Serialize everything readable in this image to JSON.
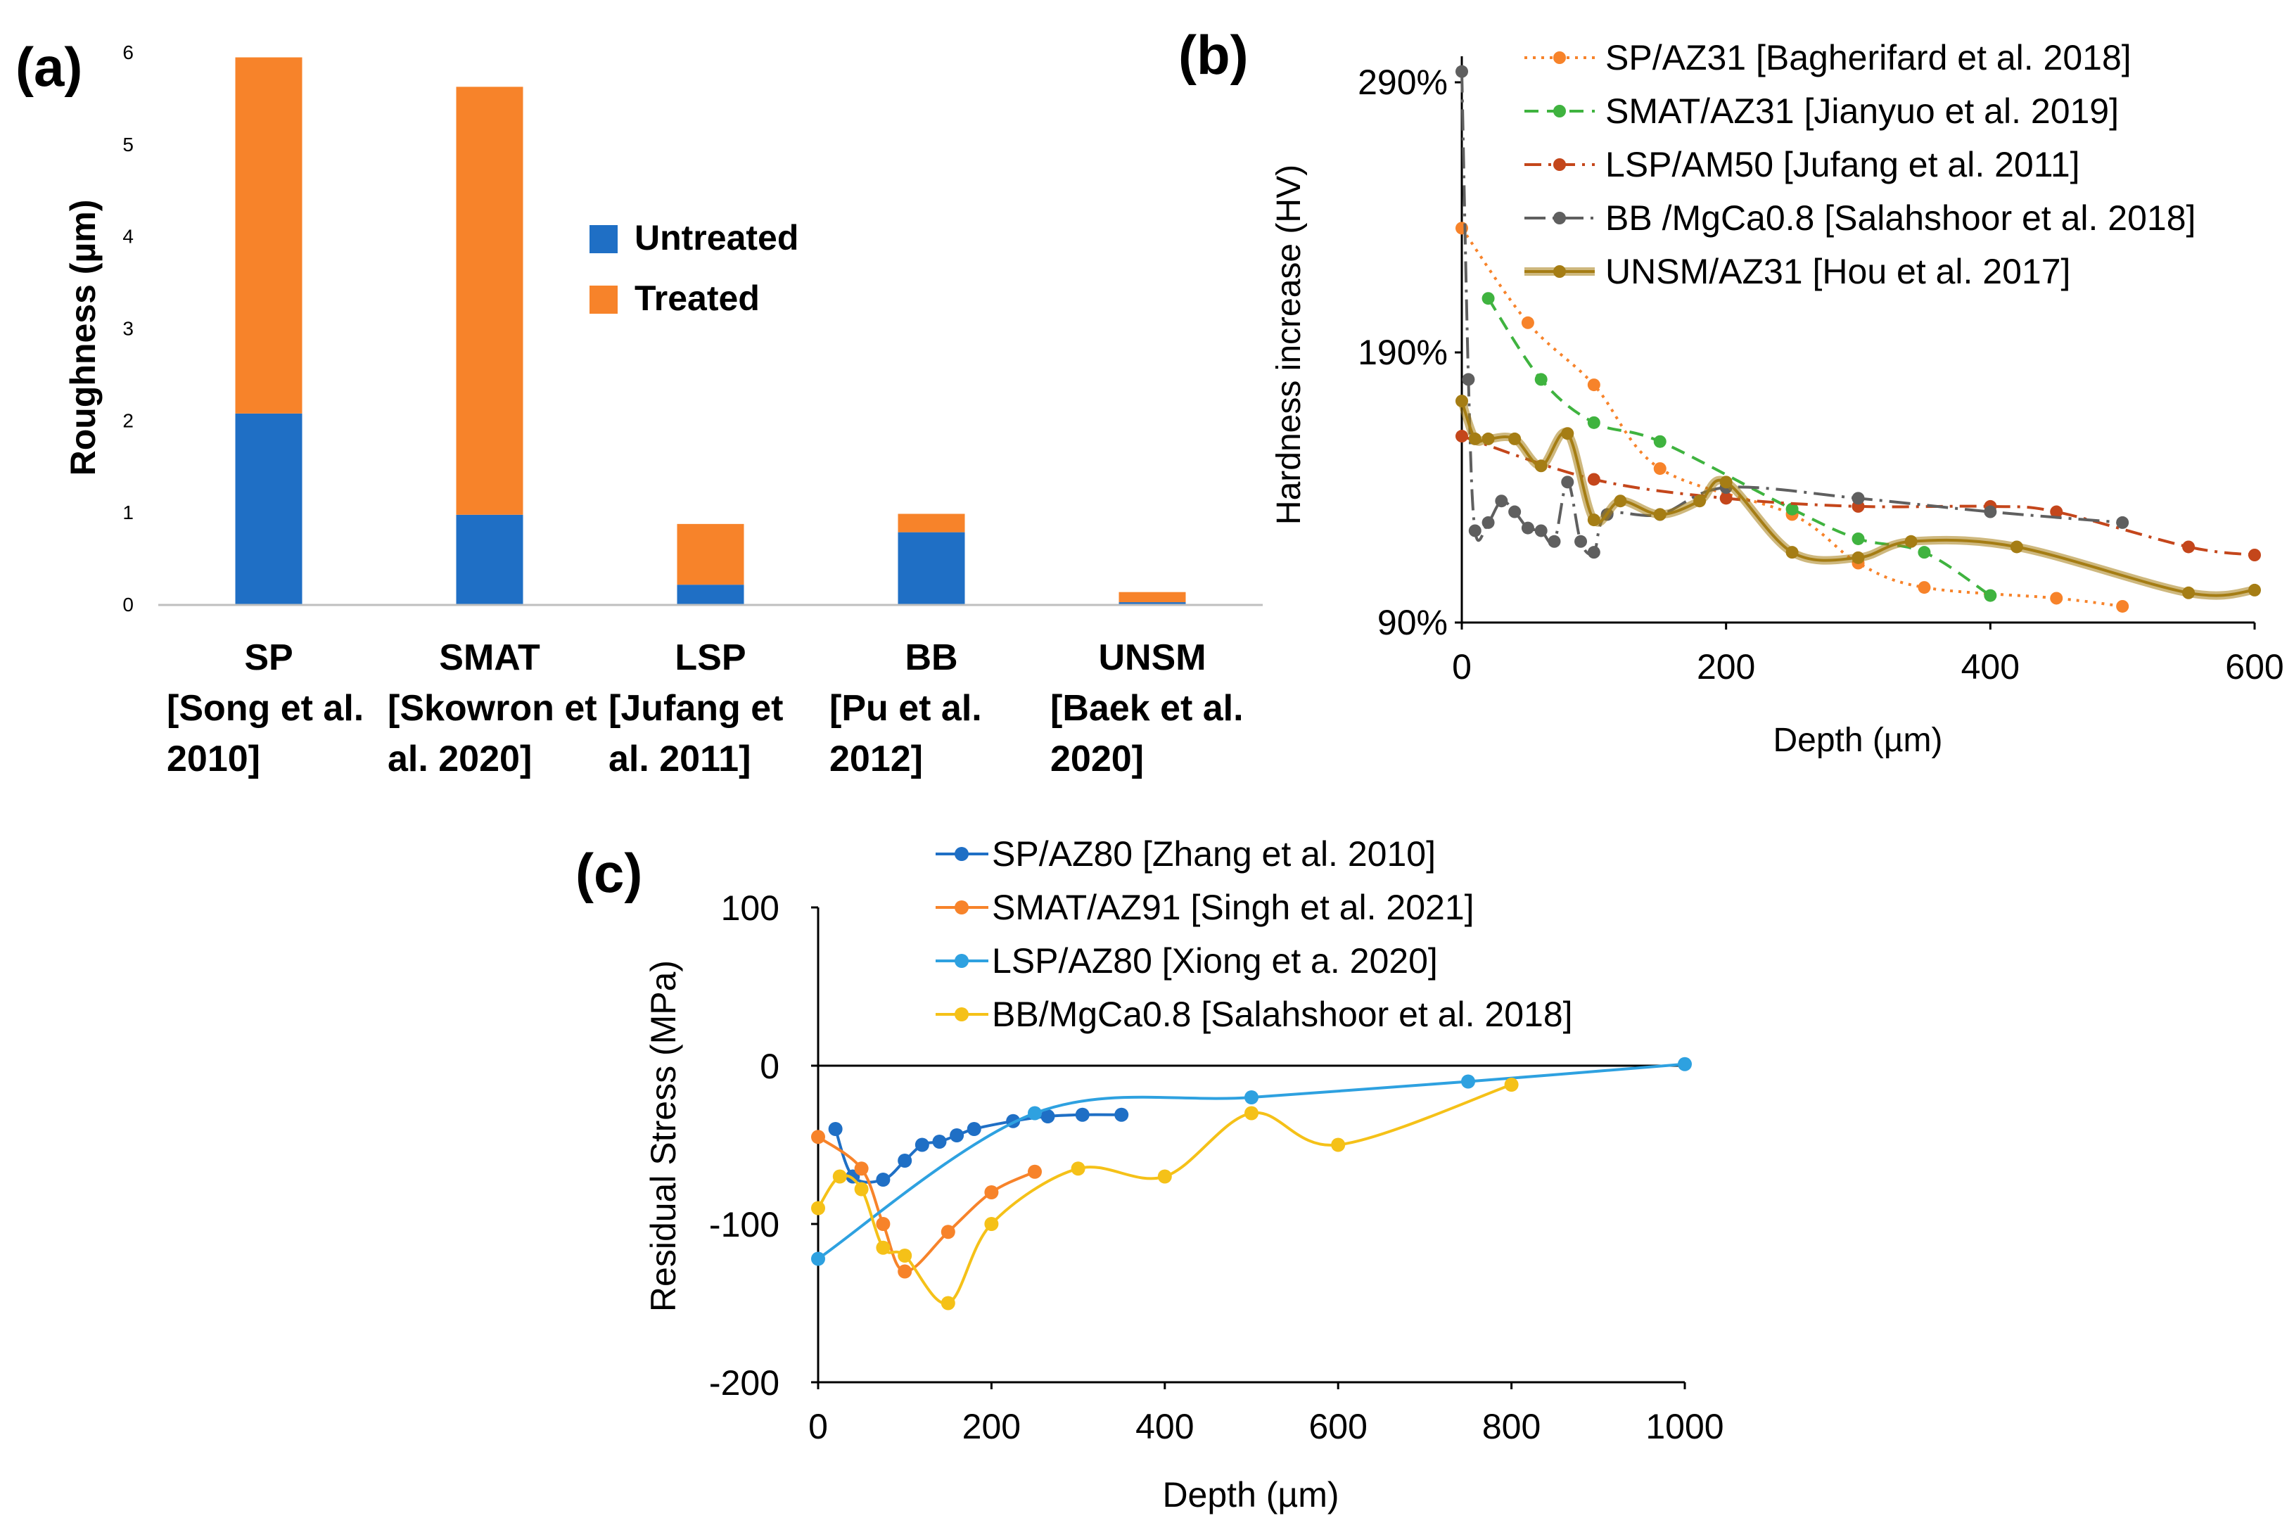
{
  "chart_data": [
    {
      "panel": "(a)",
      "type": "bar",
      "stacked": true,
      "ylabel": "Roughness (µm)",
      "ylim": [
        0,
        6
      ],
      "yticks": [
        0,
        1,
        2,
        3,
        4,
        5,
        6
      ],
      "categories": [
        [
          "SP",
          "[Song et al.",
          "2010]"
        ],
        [
          "SMAT",
          "[Skowron et",
          "al. 2020]"
        ],
        [
          "LSP",
          "[Jufang et",
          "al. 2011]"
        ],
        [
          "BB",
          "[Pu et al.",
          "2012]"
        ],
        [
          "UNSM",
          "[Baek et al.",
          "2020]"
        ]
      ],
      "series": [
        {
          "name": "Untreated",
          "color": "#1f6fc5",
          "values": [
            2.08,
            0.98,
            0.22,
            0.79,
            0.03
          ]
        },
        {
          "name": "Treated",
          "color": "#f7832a",
          "values": [
            3.87,
            4.65,
            0.66,
            0.2,
            0.11
          ]
        }
      ],
      "legend_position": "center-right"
    },
    {
      "panel": "(b)",
      "type": "line",
      "xlabel": "Depth (µm)",
      "ylabel": "Hardness increase (HV)",
      "xlim": [
        0,
        600
      ],
      "ylim": [
        90,
        290
      ],
      "xticks": [
        0,
        200,
        400,
        600
      ],
      "yticks": [
        90,
        190,
        290
      ],
      "ytick_labels": [
        "90%",
        "190%",
        "290%"
      ],
      "series": [
        {
          "name": "SP/AZ31 [Bagherifard et al. 2018]",
          "color": "#f7832a",
          "dash": "dot",
          "x": [
            0,
            50,
            100,
            150,
            250,
            300,
            350,
            450,
            500
          ],
          "y": [
            236,
            201,
            178,
            147,
            130,
            112,
            103,
            99,
            96
          ]
        },
        {
          "name": "SMAT/AZ31 [Jianyuo et al. 2019]",
          "color": "#3fb33f",
          "dash": "dash",
          "x": [
            20,
            60,
            100,
            150,
            250,
            300,
            350,
            400
          ],
          "y": [
            210,
            180,
            164,
            157,
            132,
            121,
            116,
            100
          ]
        },
        {
          "name": "LSP/AM50 [Jufang et al. 2011]",
          "color": "#c4461b",
          "dash": "dashdot",
          "x": [
            0,
            100,
            200,
            300,
            400,
            450,
            550,
            600
          ],
          "y": [
            159,
            143,
            136,
            133,
            133,
            131,
            118,
            115
          ]
        },
        {
          "name": "BB /MgCa0.8 [Salahshoor et al. 2018]",
          "color": "#5f5f5f",
          "dash": "longdashdot",
          "x": [
            0,
            5,
            10,
            20,
            30,
            40,
            50,
            60,
            70,
            80,
            90,
            100,
            110,
            150,
            200,
            300,
            400,
            500
          ],
          "y": [
            294,
            180,
            124,
            127,
            135,
            131,
            125,
            124,
            120,
            142,
            120,
            116,
            130,
            130,
            140,
            136,
            131,
            127
          ]
        },
        {
          "name": "UNSM/AZ31 [Hou et al. 2017]",
          "color": "#a57d14",
          "dash": "solid-thick",
          "x": [
            0,
            10,
            20,
            40,
            60,
            80,
            100,
            120,
            150,
            180,
            200,
            250,
            300,
            340,
            420,
            550,
            600
          ],
          "y": [
            172,
            158,
            158,
            158,
            148,
            160,
            128,
            135,
            130,
            135,
            142,
            116,
            114,
            120,
            118,
            101,
            102
          ]
        }
      ],
      "legend_position": "top-right"
    },
    {
      "panel": "(c)",
      "type": "line",
      "xlabel": "Depth (µm)",
      "ylabel": "Residual Stress (MPa)",
      "xlim": [
        0,
        1000
      ],
      "ylim": [
        -200,
        100
      ],
      "xticks": [
        0,
        200,
        400,
        600,
        800,
        1000
      ],
      "yticks": [
        -200,
        -100,
        0,
        100
      ],
      "series": [
        {
          "name": "SP/AZ80 [Zhang et al. 2010]",
          "color": "#1f6fc5",
          "x": [
            20,
            40,
            75,
            100,
            120,
            140,
            160,
            180,
            225,
            265,
            305,
            350
          ],
          "y": [
            -40,
            -70,
            -72,
            -60,
            -50,
            -48,
            -44,
            -40,
            -35,
            -32,
            -31,
            -31
          ]
        },
        {
          "name": "SMAT/AZ91 [Singh et al. 2021]",
          "color": "#f7832a",
          "x": [
            0,
            50,
            75,
            100,
            150,
            200,
            250
          ],
          "y": [
            -45,
            -65,
            -100,
            -130,
            -105,
            -80,
            -67
          ]
        },
        {
          "name": "LSP/AZ80 [Xiong et a. 2020]",
          "color": "#2ea1e0",
          "x": [
            0,
            250,
            500,
            750,
            1000
          ],
          "y": [
            -122,
            -30,
            -20,
            -10,
            1
          ]
        },
        {
          "name": "BB/MgCa0.8 [Salahshoor et al. 2018]",
          "color": "#f5c118",
          "x": [
            0,
            25,
            50,
            75,
            100,
            150,
            200,
            300,
            400,
            500,
            600,
            800
          ],
          "y": [
            -90,
            -70,
            -78,
            -115,
            -120,
            -150,
            -100,
            -65,
            -70,
            -30,
            -50,
            -12
          ]
        }
      ],
      "legend_position": "top-center"
    }
  ]
}
